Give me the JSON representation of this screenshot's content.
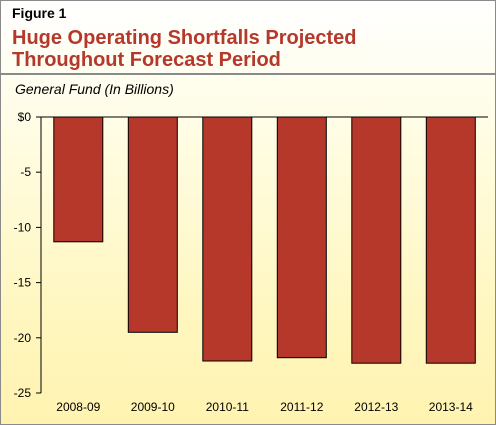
{
  "figure_label": "Figure 1",
  "title_line1": "Huge Operating Shortfalls Projected",
  "title_line2": "Throughout Forecast Period",
  "subtitle": "General Fund (In Billions)",
  "colors": {
    "title": "#b5382a",
    "bar_fill": "#b5382a",
    "bar_stroke": "#000000"
  },
  "chart_data": {
    "type": "bar",
    "categories": [
      "2008-09",
      "2009-10",
      "2010-11",
      "2011-12",
      "2012-13",
      "2013-14"
    ],
    "values": [
      -11.3,
      -19.5,
      -22.1,
      -21.8,
      -22.3,
      -22.3
    ],
    "title": "Huge Operating Shortfalls Projected Throughout Forecast Period",
    "xlabel": "",
    "ylabel": "General Fund (In Billions)",
    "ylim": [
      -25,
      0
    ],
    "yticks": [
      0,
      -5,
      -10,
      -15,
      -20,
      -25
    ],
    "ytick_labels": [
      "$0",
      "-5",
      "-10",
      "-15",
      "-20",
      "-25"
    ],
    "grid": false,
    "legend": "none"
  }
}
